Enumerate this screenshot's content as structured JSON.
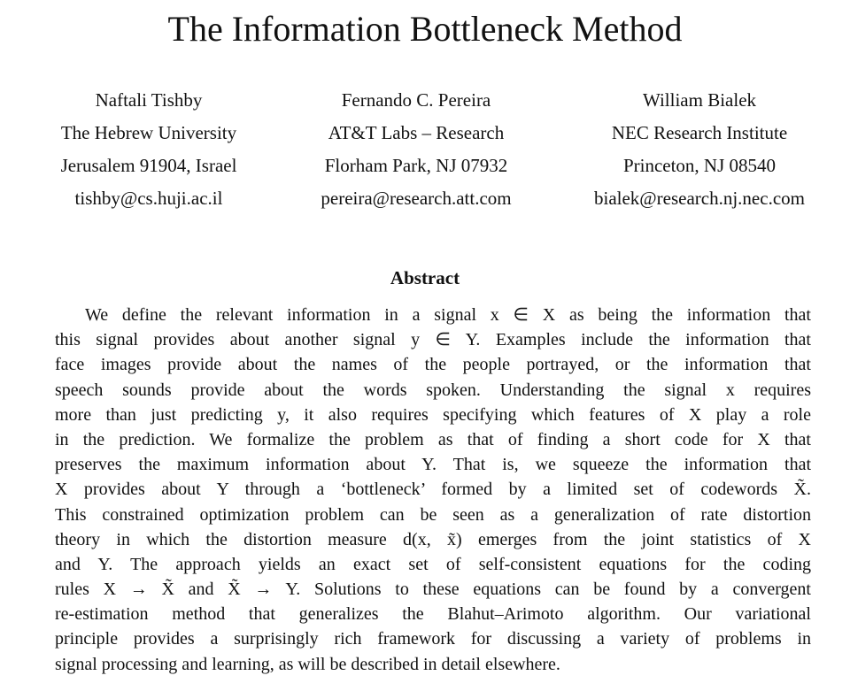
{
  "title": "The Information Bottleneck Method",
  "authors": [
    {
      "name": "Naftali Tishby",
      "affiliation": "The Hebrew University",
      "address": "Jerusalem 91904, Israel",
      "email": "tishby@cs.huji.ac.il"
    },
    {
      "name": "Fernando C. Pereira",
      "affiliation": "AT&T Labs – Research",
      "address": "Florham Park, NJ 07932",
      "email": "pereira@research.att.com"
    },
    {
      "name": "William Bialek",
      "affiliation": "NEC Research Institute",
      "address": "Princeton, NJ 08540",
      "email": "bialek@research.nj.nec.com"
    }
  ],
  "abstract": {
    "heading": "Abstract",
    "lines": [
      "We define the relevant information in a signal x ∈ X as being the information that",
      "this signal provides about another signal y ∈ Y. Examples include the information that",
      "face images provide about the names of the people portrayed, or the information that",
      "speech sounds provide about the words spoken. Understanding the signal x requires",
      "more than just predicting y, it also requires specifying which features of X play a role",
      "in the prediction. We formalize the problem as that of finding a short code for X that",
      "preserves the maximum information about Y. That is, we squeeze the information that",
      "X provides about Y through a ‘bottleneck’ formed by a limited set of codewords X̃.",
      "This constrained optimization problem can be seen as a generalization of rate distortion",
      "theory in which the distortion measure d(x, x̃) emerges from the joint statistics of X",
      "and Y. The approach yields an exact set of self-consistent equations for the coding",
      "rules X → X̃ and X̃ → Y. Solutions to these equations can be found by a convergent",
      "re-estimation method that generalizes the Blahut–Arimoto algorithm. Our variational",
      "principle provides a surprisingly rich framework for discussing a variety of problems in",
      "signal processing and learning, as will be described in detail elsewhere."
    ]
  }
}
